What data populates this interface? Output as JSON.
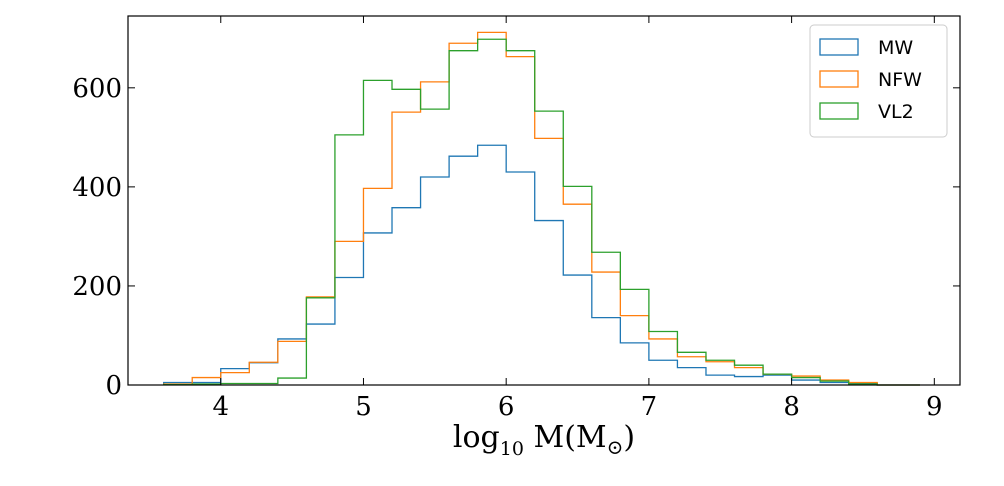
{
  "chart_data": {
    "type": "histogram-step",
    "xlabel": {
      "main": "log",
      "sub": "10",
      "rest": " M(M",
      "sun": "⊙",
      "close": ")"
    },
    "ylabel": "",
    "title": "",
    "xlim": [
      3.35,
      9.18
    ],
    "ylim": [
      0,
      745
    ],
    "xticks": [
      4,
      5,
      6,
      7,
      8,
      9
    ],
    "yticks": [
      0,
      200,
      400,
      600
    ],
    "legend_position": "top-right",
    "bin_edges": [
      3.6,
      3.8,
      4.0,
      4.2,
      4.4,
      4.6,
      4.8,
      5.0,
      5.2,
      5.4,
      5.6,
      5.8,
      6.0,
      6.2,
      6.4,
      6.6,
      6.8,
      7.0,
      7.2,
      7.4,
      7.6,
      7.8,
      8.0,
      8.2,
      8.4,
      8.6,
      8.9
    ],
    "series": [
      {
        "name": "MW",
        "color": "#1f77b4",
        "values": [
          5,
          5,
          33,
          45,
          93,
          123,
          217,
          307,
          358,
          420,
          462,
          484,
          430,
          332,
          222,
          136,
          85,
          50,
          35,
          20,
          17,
          20,
          10,
          5,
          3,
          0
        ]
      },
      {
        "name": "NFW",
        "color": "#ff7f0e",
        "values": [
          2,
          15,
          25,
          46,
          88,
          178,
          290,
          397,
          551,
          612,
          690,
          712,
          663,
          498,
          365,
          228,
          140,
          93,
          57,
          47,
          35,
          22,
          18,
          10,
          5,
          0
        ]
      },
      {
        "name": "VL2",
        "color": "#2ca02c",
        "values": [
          1,
          2,
          3,
          3,
          14,
          176,
          505,
          615,
          597,
          557,
          675,
          698,
          675,
          553,
          401,
          268,
          193,
          108,
          66,
          50,
          40,
          22,
          15,
          8,
          2,
          0
        ]
      }
    ]
  }
}
